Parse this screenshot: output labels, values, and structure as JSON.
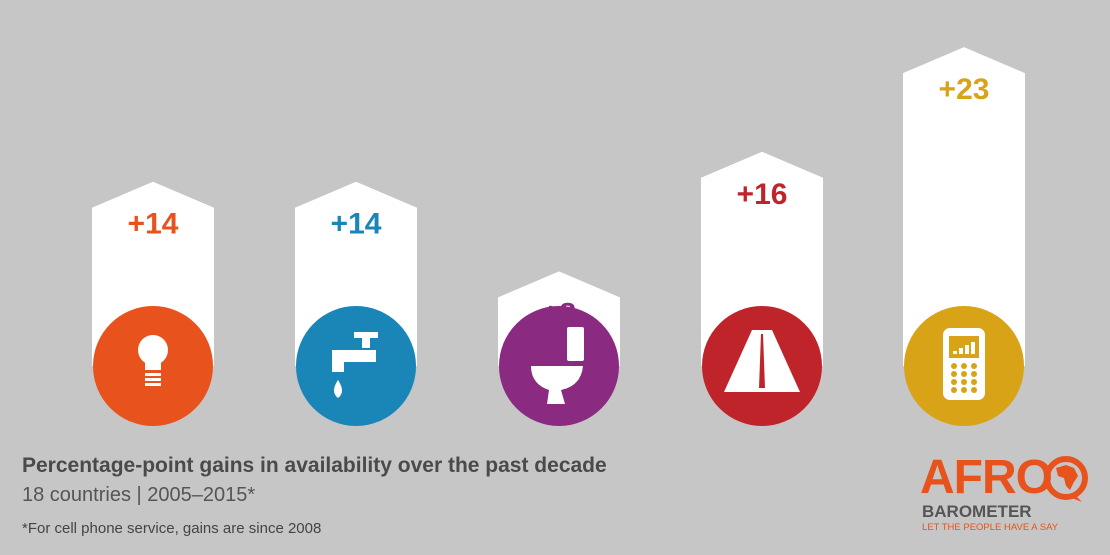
{
  "chart_data": {
    "type": "bar",
    "title": "Percentage-point gains in availability over the past decade",
    "subtitle": "18 countries | 2005–2015*",
    "footnote": "*For cell phone service, gains are since 2008",
    "categories": [
      "electricity",
      "piped water",
      "sewerage",
      "paved road",
      "cell phone service"
    ],
    "values": [
      14,
      14,
      8,
      16,
      23
    ],
    "value_labels": [
      "+14",
      "+14",
      "+8",
      "+16",
      "+23"
    ],
    "icons": [
      "light-bulb-icon",
      "water-tap-icon",
      "toilet-icon",
      "road-icon",
      "cell-phone-icon"
    ],
    "colors": [
      "#e8521c",
      "#1a86b8",
      "#8a2a80",
      "#c0242b",
      "#d8a316"
    ],
    "ylim": [
      0,
      23
    ],
    "grid": false
  },
  "logo": {
    "name": "AFRO",
    "name2": "BAROMETER",
    "tagline": "LET THE PEOPLE HAVE A SAY"
  },
  "colors": {
    "background": "#c6c6c6",
    "bar": "#ffffff"
  }
}
